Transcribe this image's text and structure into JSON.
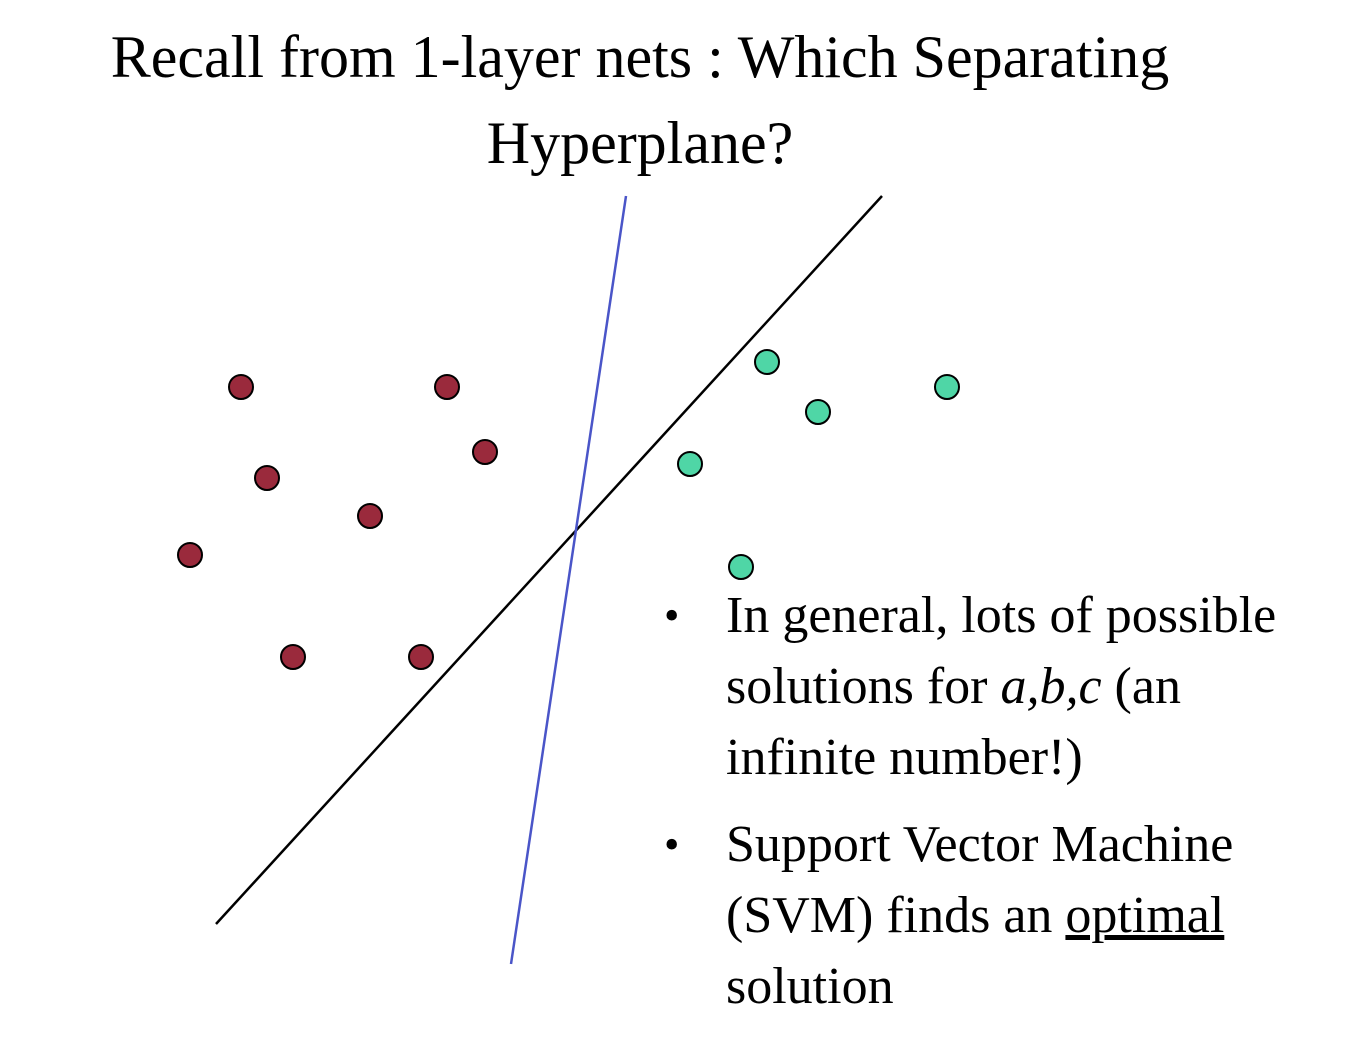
{
  "slide": {
    "title_line1": "Recall from 1-layer nets : Which Separating",
    "title_line2": "Hyperplane?"
  },
  "colors": {
    "class_a": "#9a2a3c",
    "class_b": "#4fd6a6",
    "hyperplane_black": "#000000",
    "hyperplane_blue": "#4a55c8"
  },
  "bullets": [
    {
      "symbol": "•",
      "line1": "In general, lots of possible",
      "line2_prefix": "solutions for ",
      "line2_italic": "a,b,c",
      "line2_suffix": " (an",
      "line3": "infinite number!)"
    },
    {
      "symbol": "•",
      "line1": "Support Vector Machine",
      "line2_prefix": "(SVM) finds an ",
      "line2_underlined": "optimal",
      "line3": "solution"
    }
  ]
}
